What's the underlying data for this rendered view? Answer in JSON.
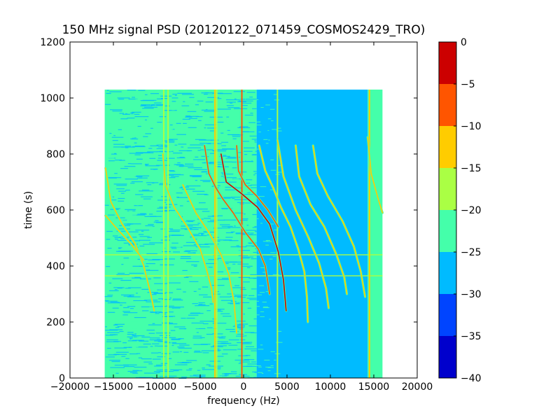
{
  "chart_data": {
    "type": "heatmap",
    "title": "150 MHz signal PSD (20120122_071459_COSMOS2429_TRO)",
    "xlabel": "frequency (Hz)",
    "ylabel": "time (s)",
    "xlim": [
      -20000,
      20000
    ],
    "ylim": [
      0,
      1200
    ],
    "xticks": [
      -20000,
      -15000,
      -10000,
      -5000,
      0,
      5000,
      10000,
      15000,
      20000
    ],
    "xtick_labels": [
      "−20000",
      "−15000",
      "−10000",
      "−5000",
      "0",
      "5000",
      "10000",
      "15000",
      "20000"
    ],
    "yticks": [
      0,
      200,
      400,
      600,
      800,
      1000,
      1200
    ],
    "ytick_labels": [
      "0",
      "200",
      "400",
      "600",
      "800",
      "1000",
      "1200"
    ],
    "data_extent": {
      "x": [
        -16000,
        16000
      ],
      "y": [
        0,
        1030
      ]
    },
    "colorbar": {
      "levels": [
        -40,
        -35,
        -30,
        -25,
        -20,
        -15,
        -10,
        -5,
        0
      ],
      "tick_labels": [
        "−40",
        "−35",
        "−30",
        "−25",
        "−20",
        "−15",
        "−10",
        "−5",
        "0"
      ],
      "colors": [
        "#0000cc",
        "#0044ff",
        "#00bbff",
        "#44ffaa",
        "#aaff44",
        "#ffcc00",
        "#ff5500",
        "#cc0000"
      ]
    },
    "background_regions": [
      {
        "x": [
          -16000,
          1500
        ],
        "level": -25,
        "color": "#44ffaa",
        "description_level": "-25 to -20"
      },
      {
        "x": [
          1500,
          3900
        ],
        "level": -27,
        "color": "#00bbff"
      },
      {
        "x": [
          3900,
          14300
        ],
        "level": -28,
        "color": "#00bbff"
      },
      {
        "x": [
          14300,
          16000
        ],
        "level": -25,
        "color": "#44ffaa"
      }
    ],
    "constant_lines": [
      {
        "x": -9200,
        "level": -17
      },
      {
        "x": -8700,
        "level": -17
      },
      {
        "x": -3300,
        "level": -12
      },
      {
        "x": -3100,
        "level": -17
      },
      {
        "x": -200,
        "level": -8
      },
      {
        "x": 3900,
        "level": -20
      },
      {
        "x": 14500,
        "level": -15
      }
    ],
    "horizontal_lines": [
      {
        "y": 365,
        "level": -20
      },
      {
        "y": 440,
        "level": -20
      }
    ],
    "traces": [
      {
        "points": [
          [
            -15900,
            750
          ],
          [
            -15300,
            630
          ],
          [
            -14000,
            550
          ],
          [
            -12500,
            480
          ],
          [
            -11500,
            400
          ],
          [
            -10700,
            300
          ],
          [
            -10300,
            240
          ]
        ],
        "level": -15
      },
      {
        "points": [
          [
            -15900,
            580
          ],
          [
            -14500,
            530
          ],
          [
            -13000,
            480
          ],
          [
            -11500,
            420
          ]
        ],
        "level": -15
      },
      {
        "points": [
          [
            -9300,
            800
          ],
          [
            -9000,
            690
          ],
          [
            -8000,
            610
          ],
          [
            -6500,
            540
          ],
          [
            -5000,
            460
          ],
          [
            -4200,
            380
          ],
          [
            -3700,
            320
          ],
          [
            -3500,
            270
          ]
        ],
        "level": -15
      },
      {
        "points": [
          [
            -7000,
            690
          ],
          [
            -5500,
            590
          ],
          [
            -4000,
            520
          ],
          [
            -2600,
            440
          ],
          [
            -1700,
            370
          ],
          [
            -1100,
            270
          ],
          [
            -800,
            160
          ]
        ],
        "level": -15
      },
      {
        "points": [
          [
            -4500,
            830
          ],
          [
            -4000,
            730
          ],
          [
            -3200,
            680
          ],
          [
            -2400,
            640
          ],
          [
            -1200,
            590
          ],
          [
            200,
            520
          ],
          [
            1700,
            460
          ],
          [
            2500,
            400
          ],
          [
            3000,
            300
          ]
        ],
        "level": -8
      },
      {
        "points": [
          [
            -2600,
            800
          ],
          [
            -2000,
            700
          ],
          [
            -300,
            660
          ],
          [
            1600,
            610
          ],
          [
            3000,
            550
          ],
          [
            4000,
            450
          ],
          [
            4600,
            350
          ],
          [
            4900,
            240
          ]
        ],
        "level": -5
      },
      {
        "points": [
          [
            -800,
            830
          ],
          [
            -600,
            740
          ],
          [
            200,
            690
          ],
          [
            1500,
            650
          ],
          [
            2800,
            600
          ],
          [
            4000,
            540
          ]
        ],
        "level": -10
      },
      {
        "points": [
          [
            1800,
            830
          ],
          [
            2500,
            740
          ],
          [
            3400,
            680
          ],
          [
            4300,
            610
          ],
          [
            5400,
            540
          ],
          [
            6300,
            460
          ],
          [
            7000,
            380
          ],
          [
            7300,
            290
          ],
          [
            7400,
            200
          ]
        ],
        "level": -15
      },
      {
        "points": [
          [
            3900,
            850
          ],
          [
            4600,
            720
          ],
          [
            6000,
            600
          ],
          [
            7500,
            500
          ],
          [
            8700,
            410
          ],
          [
            9500,
            320
          ],
          [
            9800,
            250
          ]
        ],
        "level": -15
      },
      {
        "points": [
          [
            6000,
            830
          ],
          [
            6400,
            720
          ],
          [
            7700,
            620
          ],
          [
            9300,
            540
          ],
          [
            10700,
            440
          ],
          [
            11600,
            360
          ],
          [
            11900,
            300
          ]
        ],
        "level": -15
      },
      {
        "points": [
          [
            8000,
            830
          ],
          [
            8500,
            730
          ],
          [
            9700,
            650
          ],
          [
            11400,
            560
          ],
          [
            12700,
            470
          ],
          [
            13500,
            380
          ],
          [
            14000,
            290
          ]
        ],
        "level": -15
      },
      {
        "points": [
          [
            14300,
            860
          ],
          [
            14700,
            730
          ],
          [
            15500,
            640
          ],
          [
            16000,
            590
          ]
        ],
        "level": -15
      }
    ]
  }
}
